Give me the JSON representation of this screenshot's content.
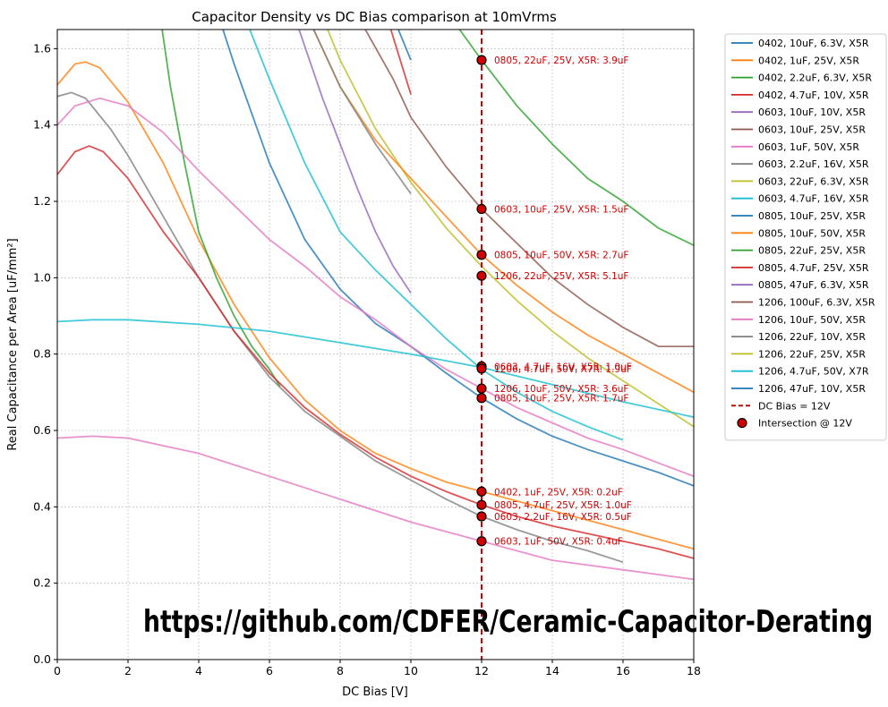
{
  "chart_data": {
    "type": "line",
    "title": "Capacitor Density vs DC Bias comparison at 10mVrms",
    "xlabel": "DC Bias [V]",
    "ylabel": "Real Capacitance per Area [uF/mm²]",
    "xlim": [
      0,
      18
    ],
    "ylim": [
      0,
      1.65
    ],
    "xticks": [
      0,
      2,
      4,
      6,
      8,
      10,
      12,
      14,
      16,
      18
    ],
    "yticks": [
      0.0,
      0.2,
      0.4,
      0.6,
      0.8,
      1.0,
      1.2,
      1.4,
      1.6
    ],
    "xtick_labels": [
      "0",
      "2",
      "4",
      "6",
      "8",
      "10",
      "12",
      "14",
      "16",
      "18"
    ],
    "ytick_labels": [
      "0.0",
      "0.2",
      "0.4",
      "0.6",
      "0.8",
      "1.0",
      "1.2",
      "1.4",
      "1.6"
    ],
    "grid": true,
    "legend_position": "outside-right",
    "series": [
      {
        "name": "0402, 10uF, 6.3V, X5R",
        "color": "#1f77b4",
        "points": [
          [
            9.6,
            1.66
          ],
          [
            10.0,
            1.57
          ]
        ]
      },
      {
        "name": "0402, 1uF, 25V, X5R",
        "color": "#ff7f0e",
        "points": [
          [
            0,
            1.505
          ],
          [
            0.5,
            1.56
          ],
          [
            0.8,
            1.565
          ],
          [
            1.2,
            1.55
          ],
          [
            2,
            1.46
          ],
          [
            3,
            1.3
          ],
          [
            4,
            1.1
          ],
          [
            5,
            0.93
          ],
          [
            6,
            0.79
          ],
          [
            7,
            0.68
          ],
          [
            8,
            0.6
          ],
          [
            9,
            0.54
          ],
          [
            10,
            0.5
          ],
          [
            11,
            0.465
          ],
          [
            12,
            0.44
          ],
          [
            13,
            0.415
          ],
          [
            14,
            0.39
          ],
          [
            15,
            0.365
          ],
          [
            16,
            0.34
          ],
          [
            17,
            0.315
          ],
          [
            18,
            0.29
          ]
        ]
      },
      {
        "name": "0402, 2.2uF, 6.3V, X5R",
        "color": "#2ca02c",
        "points": [
          [
            2.95,
            1.66
          ],
          [
            3.2,
            1.5
          ],
          [
            3.6,
            1.3
          ],
          [
            4,
            1.12
          ],
          [
            4.5,
            1.0
          ],
          [
            5,
            0.9
          ],
          [
            5.5,
            0.82
          ],
          [
            6,
            0.76
          ],
          [
            6.3,
            0.715
          ]
        ]
      },
      {
        "name": "0402, 4.7uF, 10V, X5R",
        "color": "#d62728",
        "points": [
          [
            9.4,
            1.66
          ],
          [
            9.7,
            1.57
          ],
          [
            10.0,
            1.48
          ]
        ]
      },
      {
        "name": "0603, 10uF, 10V, X5R",
        "color": "#9467bd",
        "points": [
          [
            6.8,
            1.66
          ],
          [
            7.5,
            1.47
          ],
          [
            8,
            1.35
          ],
          [
            8.5,
            1.23
          ],
          [
            9,
            1.12
          ],
          [
            9.5,
            1.03
          ],
          [
            10,
            0.96
          ]
        ]
      },
      {
        "name": "0603, 10uF, 25V, X5R",
        "color": "#8c564b",
        "points": [
          [
            8.65,
            1.66
          ],
          [
            9.5,
            1.52
          ],
          [
            10,
            1.42
          ],
          [
            11,
            1.29
          ],
          [
            12,
            1.18
          ],
          [
            13,
            1.09
          ],
          [
            14,
            1.0
          ],
          [
            15,
            0.93
          ],
          [
            16,
            0.87
          ],
          [
            17,
            0.82
          ],
          [
            18,
            0.82
          ]
        ]
      },
      {
        "name": "0603, 1uF, 50V, X5R",
        "color": "#e377c2",
        "points": [
          [
            0,
            0.58
          ],
          [
            1,
            0.585
          ],
          [
            2,
            0.58
          ],
          [
            4,
            0.54
          ],
          [
            6,
            0.48
          ],
          [
            8,
            0.42
          ],
          [
            10,
            0.36
          ],
          [
            12,
            0.31
          ],
          [
            14,
            0.26
          ],
          [
            16,
            0.235
          ],
          [
            18,
            0.21
          ]
        ]
      },
      {
        "name": "0603, 2.2uF, 16V, X5R",
        "color": "#7f7f7f",
        "points": [
          [
            0,
            1.475
          ],
          [
            0.4,
            1.485
          ],
          [
            0.8,
            1.47
          ],
          [
            1.5,
            1.39
          ],
          [
            2,
            1.32
          ],
          [
            3,
            1.16
          ],
          [
            4,
            1.0
          ],
          [
            5,
            0.86
          ],
          [
            6,
            0.74
          ],
          [
            7,
            0.65
          ],
          [
            8,
            0.585
          ],
          [
            9,
            0.52
          ],
          [
            10,
            0.47
          ],
          [
            11,
            0.42
          ],
          [
            12,
            0.375
          ],
          [
            13,
            0.34
          ],
          [
            14,
            0.31
          ],
          [
            15,
            0.285
          ],
          [
            16,
            0.255
          ]
        ]
      },
      {
        "name": "0603, 22uF, 6.3V, X5R",
        "color": "#bcbd22",
        "points": [
          [
            7.6,
            1.66
          ],
          [
            8,
            1.57
          ],
          [
            9,
            1.39
          ],
          [
            10,
            1.25
          ],
          [
            11,
            1.13
          ],
          [
            12,
            1.03
          ],
          [
            13,
            0.94
          ],
          [
            14,
            0.86
          ],
          [
            15,
            0.79
          ],
          [
            16,
            0.73
          ],
          [
            17,
            0.67
          ],
          [
            18,
            0.61
          ]
        ]
      },
      {
        "name": "0603, 4.7uF, 16V, X5R",
        "color": "#17becf",
        "points": [
          [
            5.4,
            1.66
          ],
          [
            6,
            1.52
          ],
          [
            7,
            1.3
          ],
          [
            8,
            1.12
          ],
          [
            9,
            1.02
          ],
          [
            10,
            0.93
          ],
          [
            11,
            0.84
          ],
          [
            12,
            0.76
          ],
          [
            13,
            0.7
          ],
          [
            14,
            0.65
          ],
          [
            15,
            0.61
          ],
          [
            16,
            0.575
          ]
        ]
      },
      {
        "name": "0805, 10uF, 25V, X5R",
        "color": "#1f77b4",
        "points": [
          [
            4.65,
            1.66
          ],
          [
            5,
            1.56
          ],
          [
            6,
            1.3
          ],
          [
            7,
            1.1
          ],
          [
            8,
            0.97
          ],
          [
            9,
            0.88
          ],
          [
            10,
            0.82
          ],
          [
            11,
            0.75
          ],
          [
            12,
            0.685
          ],
          [
            13,
            0.63
          ],
          [
            14,
            0.585
          ],
          [
            15,
            0.55
          ],
          [
            16,
            0.52
          ],
          [
            17,
            0.49
          ],
          [
            18,
            0.455
          ]
        ]
      },
      {
        "name": "0805, 10uF, 50V, X5R",
        "color": "#ff7f0e",
        "points": [
          [
            7.2,
            1.66
          ],
          [
            8,
            1.5
          ],
          [
            9,
            1.36
          ],
          [
            10,
            1.26
          ],
          [
            11,
            1.16
          ],
          [
            12,
            1.06
          ],
          [
            13,
            0.98
          ],
          [
            14,
            0.91
          ],
          [
            15,
            0.85
          ],
          [
            16,
            0.8
          ],
          [
            17,
            0.75
          ],
          [
            18,
            0.7
          ]
        ]
      },
      {
        "name": "0805, 22uF, 25V, X5R",
        "color": "#2ca02c",
        "points": [
          [
            11.3,
            1.66
          ],
          [
            12,
            1.57
          ],
          [
            13,
            1.45
          ],
          [
            14,
            1.35
          ],
          [
            15,
            1.26
          ],
          [
            16,
            1.2
          ],
          [
            17,
            1.13
          ],
          [
            18,
            1.085
          ]
        ]
      },
      {
        "name": "0805, 4.7uF, 25V, X5R",
        "color": "#d62728",
        "points": [
          [
            0,
            1.27
          ],
          [
            0.5,
            1.33
          ],
          [
            0.9,
            1.345
          ],
          [
            1.3,
            1.33
          ],
          [
            2,
            1.26
          ],
          [
            3,
            1.12
          ],
          [
            4,
            1.0
          ],
          [
            5,
            0.86
          ],
          [
            6,
            0.75
          ],
          [
            7,
            0.66
          ],
          [
            8,
            0.59
          ],
          [
            9,
            0.53
          ],
          [
            10,
            0.48
          ],
          [
            11,
            0.44
          ],
          [
            12,
            0.405
          ],
          [
            13,
            0.375
          ],
          [
            14,
            0.35
          ],
          [
            15,
            0.33
          ],
          [
            16,
            0.31
          ],
          [
            17,
            0.29
          ],
          [
            18,
            0.265
          ]
        ]
      },
      {
        "name": "0805, 47uF, 6.3V, X5R",
        "color": "#9467bd",
        "points": []
      },
      {
        "name": "1206, 100uF, 6.3V, X5R",
        "color": "#8c564b",
        "points": []
      },
      {
        "name": "1206, 10uF, 50V, X5R",
        "color": "#e377c2",
        "points": [
          [
            0,
            1.4
          ],
          [
            0.5,
            1.45
          ],
          [
            1.2,
            1.47
          ],
          [
            2,
            1.45
          ],
          [
            3,
            1.38
          ],
          [
            4,
            1.28
          ],
          [
            5,
            1.19
          ],
          [
            6,
            1.1
          ],
          [
            7,
            1.03
          ],
          [
            8,
            0.95
          ],
          [
            9,
            0.89
          ],
          [
            10,
            0.82
          ],
          [
            11,
            0.76
          ],
          [
            12,
            0.71
          ],
          [
            13,
            0.66
          ],
          [
            14,
            0.62
          ],
          [
            15,
            0.58
          ],
          [
            16,
            0.55
          ],
          [
            17,
            0.515
          ],
          [
            18,
            0.48
          ]
        ]
      },
      {
        "name": "1206, 22uF, 10V, X5R",
        "color": "#7f7f7f",
        "points": [
          [
            7.2,
            1.66
          ],
          [
            8,
            1.5
          ],
          [
            9,
            1.35
          ],
          [
            10,
            1.22
          ]
        ]
      },
      {
        "name": "1206, 22uF, 25V, X5R",
        "color": "#bcbd22",
        "points": []
      },
      {
        "name": "1206, 4.7uF, 50V, X7R",
        "color": "#17becf",
        "points": [
          [
            0,
            0.885
          ],
          [
            1,
            0.89
          ],
          [
            2,
            0.89
          ],
          [
            4,
            0.878
          ],
          [
            6,
            0.86
          ],
          [
            8,
            0.83
          ],
          [
            10,
            0.8
          ],
          [
            12,
            0.765
          ],
          [
            14,
            0.72
          ],
          [
            16,
            0.675
          ],
          [
            18,
            0.635
          ]
        ]
      },
      {
        "name": "1206, 47uF, 10V, X5R",
        "color": "#1f77b4",
        "points": []
      }
    ],
    "bias_line": {
      "name": "DC Bias = 12V",
      "x": 12,
      "color": "#d00000"
    },
    "intersection_legend": "Intersection @ 12V",
    "intersections": [
      {
        "y": 1.57,
        "label": "0805, 22uF, 25V, X5R: 3.9uF"
      },
      {
        "y": 1.18,
        "label": "0603, 10uF, 25V, X5R: 1.5uF"
      },
      {
        "y": 1.06,
        "label": "0805, 10uF, 50V, X5R: 2.7uF"
      },
      {
        "y": 1.005,
        "label": "1206, 22uF, 25V, X5R: 5.1uF"
      },
      {
        "y": 0.768,
        "label": "0603, 4.7uF, 16V, X5R: 1.0uF"
      },
      {
        "y": 0.762,
        "label": "1206, 4.7uF, 50V, X7R: 1.9uF"
      },
      {
        "y": 0.71,
        "label": "1206, 10uF, 50V, X5R: 3.6uF"
      },
      {
        "y": 0.685,
        "label": "0805, 10uF, 25V, X5R: 1.7uF"
      },
      {
        "y": 0.44,
        "label": "0402, 1uF, 25V, X5R: 0.2uF"
      },
      {
        "y": 0.405,
        "label": "0805, 4.7uF, 25V, X5R: 1.0uF"
      },
      {
        "y": 0.375,
        "label": "0603, 2.2uF, 16V, X5R: 0.5uF"
      },
      {
        "y": 0.31,
        "label": "0603, 1uF, 50V, X5R: 0.4uF"
      }
    ],
    "watermark": "https://github.com/CDFER/Ceramic-Capacitor-Derating"
  }
}
